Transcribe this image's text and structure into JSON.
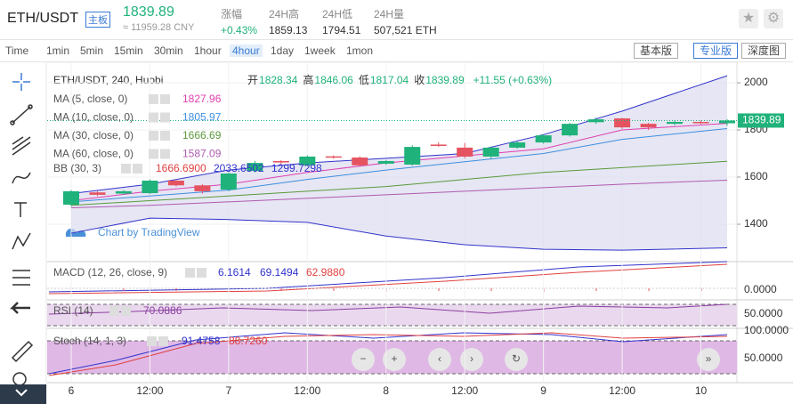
{
  "header": {
    "pair": "ETH/USDT",
    "badge": "主板",
    "price": "1839.89",
    "cny": "≈ 11959.28 CNY",
    "stats": [
      {
        "label": "涨幅",
        "value": "+0.43%"
      },
      {
        "label": "24H高",
        "value": "1859.13"
      },
      {
        "label": "24H低",
        "value": "1794.51"
      },
      {
        "label": "24H量",
        "value": "507,521 ETH"
      }
    ]
  },
  "toolbar": {
    "intervals": [
      "Time",
      "1min",
      "5min",
      "15min",
      "30min",
      "1hour",
      "4hour",
      "1day",
      "1week",
      "1mon"
    ],
    "active": "4hour",
    "views": [
      "基本版",
      "专业版",
      "深度图"
    ]
  },
  "legend": {
    "symbol": "ETH/USDT, 240, Huobi",
    "ohlc": [
      {
        "label": "开",
        "value": "1828.34"
      },
      {
        "label": "高",
        "value": "1846.06"
      },
      {
        "label": "低",
        "value": "1817.04"
      },
      {
        "label": "收",
        "value": "1839.89"
      }
    ],
    "change": "+11.55 (+0.63%)",
    "bb": {
      "name": "BB (30, 3)",
      "values": [
        "1666.6900",
        "2033.6502",
        "1299.7298"
      ]
    }
  },
  "watermark": "Chart by TradingView",
  "indicators": {
    "macd": {
      "name": "MACD (12, 26, close, 9)",
      "values": [
        "6.1614",
        "69.1494",
        "62.9880"
      ],
      "tick": "0.0000"
    },
    "rsi": {
      "name": "RSI (14)",
      "values": [
        "70.0886"
      ],
      "tick": "50.0000"
    },
    "stoch": {
      "name": "Stoch (14, 1, 3)",
      "values": [
        "91.4758",
        "88.7260"
      ],
      "ticks": [
        "100.0000",
        "50.0000"
      ]
    }
  },
  "chart_data": {
    "type": "candlestick",
    "categories": [
      "6",
      null,
      null,
      "12:00",
      null,
      null,
      "7",
      null,
      null,
      "12:00",
      null,
      null,
      "8",
      null,
      null,
      "12:00",
      null,
      null,
      "9",
      null,
      null,
      "12:00",
      null,
      null,
      "10",
      null
    ],
    "open": [
      1483,
      1535,
      1530,
      1532,
      1585,
      1565,
      1547,
      1626,
      1668,
      1650,
      1688,
      1683,
      1657,
      1653,
      1738,
      1725,
      1687,
      1725,
      1747,
      1777,
      1833,
      1849,
      1826,
      1826,
      1834,
      1828.34
    ],
    "close": [
      1540,
      1525,
      1540,
      1585,
      1565,
      1540,
      1615,
      1660,
      1662,
      1687,
      1683,
      1650,
      1668,
      1728,
      1733,
      1687,
      1725,
      1747,
      1777,
      1826,
      1845,
      1811,
      1811,
      1834,
      1832,
      1839.89
    ],
    "high": [
      1545,
      1540,
      1545,
      1590,
      1590,
      1570,
      1620,
      1668,
      1672,
      1692,
      1692,
      1688,
      1672,
      1735,
      1748,
      1745,
      1730,
      1752,
      1782,
      1830,
      1852,
      1852,
      1830,
      1840,
      1840,
      1846.06
    ],
    "low": [
      1475,
      1520,
      1525,
      1528,
      1560,
      1530,
      1540,
      1620,
      1655,
      1645,
      1678,
      1645,
      1652,
      1648,
      1728,
      1680,
      1678,
      1720,
      1742,
      1772,
      1826,
      1805,
      1800,
      1820,
      1825,
      1817.04
    ],
    "up_color": "#1fb27a",
    "down_color": "#e55360",
    "series": [
      {
        "name": "MA (5, close, 0)",
        "legend_value": "1827.96",
        "color": "#e040b0",
        "x": [
          0,
          3,
          6,
          9,
          12,
          15,
          18,
          21,
          25
        ],
        "values": [
          1500,
          1540,
          1570,
          1620,
          1660,
          1690,
          1720,
          1800,
          1828
        ]
      },
      {
        "name": "MA (10, close, 0)",
        "legend_value": "1805.97",
        "color": "#3d8fe0",
        "x": [
          0,
          3,
          6,
          9,
          12,
          15,
          18,
          21,
          25
        ],
        "values": [
          1495,
          1520,
          1545,
          1590,
          1630,
          1665,
          1700,
          1760,
          1806
        ]
      },
      {
        "name": "MA (30, close, 0)",
        "legend_value": "1666.69",
        "color": "#5a9a3a",
        "x": [
          0,
          3,
          6,
          9,
          12,
          15,
          18,
          21,
          25
        ],
        "values": [
          1480,
          1500,
          1520,
          1540,
          1560,
          1590,
          1620,
          1640,
          1667
        ]
      },
      {
        "name": "MA (60, close, 0)",
        "legend_value": "1587.09",
        "color": "#b05ab0",
        "x": [
          0,
          3,
          6,
          9,
          12,
          15,
          18,
          21,
          25
        ],
        "values": [
          1470,
          1480,
          1495,
          1510,
          1525,
          1540,
          1555,
          1570,
          1587
        ]
      },
      {
        "color": "#3333cc",
        "x": [
          0,
          3,
          6,
          9,
          12,
          15,
          18,
          21,
          25
        ],
        "values": [
          1530,
          1570,
          1630,
          1660,
          1680,
          1700,
          1780,
          1880,
          2030
        ]
      },
      {
        "color": "#3333cc",
        "x": [
          0,
          3,
          6,
          9,
          12,
          15,
          18,
          21,
          25
        ],
        "values": [
          1362,
          1426,
          1420,
          1408,
          1350,
          1313,
          1294,
          1290,
          1300
        ]
      }
    ],
    "ylim": [
      1249,
      2087
    ],
    "yticks": [
      1400,
      1600,
      1800,
      2000
    ]
  }
}
